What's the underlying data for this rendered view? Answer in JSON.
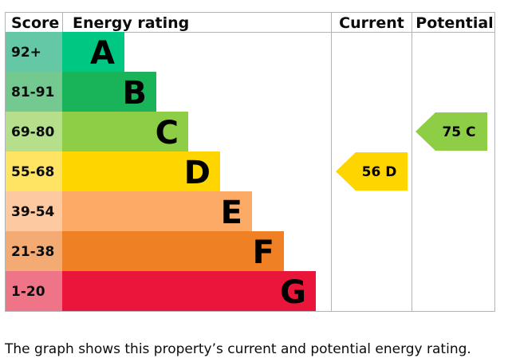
{
  "chart_data": {
    "type": "table",
    "headers": {
      "score": "Score",
      "rating": "Energy rating",
      "current": "Current",
      "potential": "Potential"
    },
    "bands": [
      {
        "letter": "A",
        "range": "92+",
        "min": 92,
        "max": 100,
        "color": "#00c781",
        "score_color": "#64c7a6"
      },
      {
        "letter": "B",
        "range": "81-91",
        "min": 81,
        "max": 91,
        "color": "#19b459",
        "score_color": "#74c991"
      },
      {
        "letter": "C",
        "range": "69-80",
        "min": 69,
        "max": 80,
        "color": "#8dce46",
        "score_color": "#b6df8c"
      },
      {
        "letter": "D",
        "range": "55-68",
        "min": 55,
        "max": 68,
        "color": "#ffd500",
        "score_color": "#ffe464"
      },
      {
        "letter": "E",
        "range": "39-54",
        "min": 39,
        "max": 54,
        "color": "#fcaa65",
        "score_color": "#fdc9a0"
      },
      {
        "letter": "F",
        "range": "21-38",
        "min": 21,
        "max": 38,
        "color": "#ef8023",
        "score_color": "#f4ab73"
      },
      {
        "letter": "G",
        "range": "1-20",
        "min": 1,
        "max": 20,
        "color": "#e9153b",
        "score_color": "#f07488"
      }
    ],
    "current": {
      "value": 56,
      "letter": "D",
      "label": "56 D",
      "color": "#ffd500"
    },
    "potential": {
      "value": 75,
      "letter": "C",
      "label": "75 C",
      "color": "#8dce46"
    }
  },
  "caption": "The graph shows this property’s current and potential energy rating."
}
